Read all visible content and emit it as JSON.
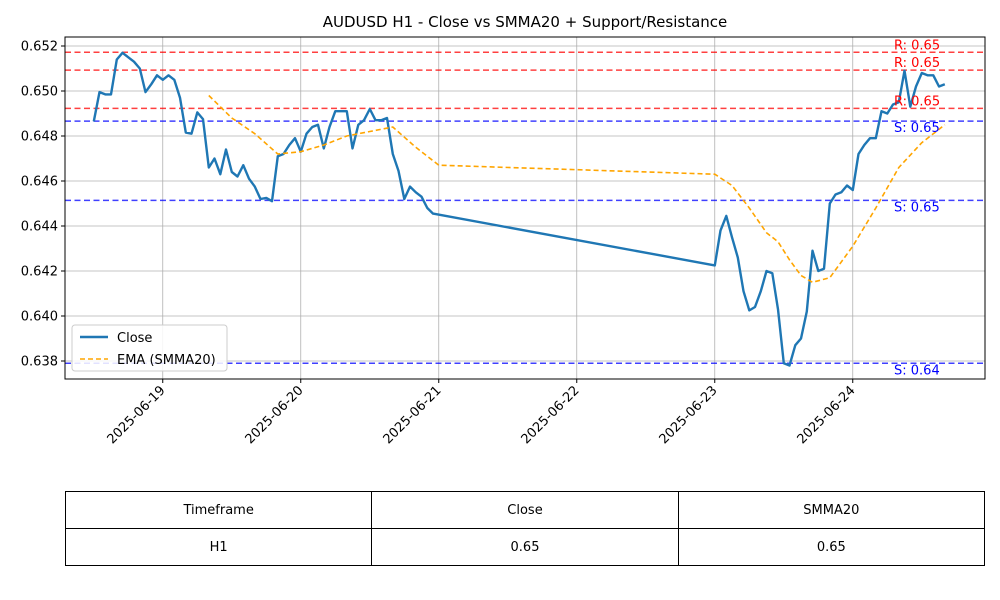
{
  "chart_data": {
    "type": "line",
    "title": "AUDUSD H1 - Close vs SMMA20 + Support/Resistance",
    "xlabel": "",
    "ylabel": "",
    "x_range": [
      "2025-06-18 07:00",
      "2025-06-24 23:00"
    ],
    "ylim": [
      0.6372,
      0.6524
    ],
    "x_ticks": [
      "2025-06-19",
      "2025-06-20",
      "2025-06-21",
      "2025-06-22",
      "2025-06-23",
      "2025-06-24"
    ],
    "y_ticks": [
      "0.638",
      "0.640",
      "0.642",
      "0.644",
      "0.646",
      "0.648",
      "0.650",
      "0.652"
    ],
    "grid": true,
    "legend_position": "lower-left",
    "series": [
      {
        "name": "Close",
        "color": "#1f77b4",
        "style": "solid",
        "points": [
          [
            "2025-06-18 12:00",
            0.64865
          ],
          [
            "2025-06-18 13:00",
            0.64995
          ],
          [
            "2025-06-18 14:00",
            0.64985
          ],
          [
            "2025-06-18 15:00",
            0.64985
          ],
          [
            "2025-06-18 16:00",
            0.6514
          ],
          [
            "2025-06-18 17:00",
            0.6517
          ],
          [
            "2025-06-18 18:00",
            0.6515
          ],
          [
            "2025-06-18 19:00",
            0.6513
          ],
          [
            "2025-06-18 20:00",
            0.651
          ],
          [
            "2025-06-18 21:00",
            0.64995
          ],
          [
            "2025-06-18 22:00",
            0.6503
          ],
          [
            "2025-06-18 23:00",
            0.6507
          ],
          [
            "2025-06-19 00:00",
            0.6505
          ],
          [
            "2025-06-19 01:00",
            0.6507
          ],
          [
            "2025-06-19 02:00",
            0.6505
          ],
          [
            "2025-06-19 03:00",
            0.6497
          ],
          [
            "2025-06-19 04:00",
            0.64815
          ],
          [
            "2025-06-19 05:00",
            0.6481
          ],
          [
            "2025-06-19 06:00",
            0.64905
          ],
          [
            "2025-06-19 07:00",
            0.64875
          ],
          [
            "2025-06-19 08:00",
            0.6466
          ],
          [
            "2025-06-19 09:00",
            0.647
          ],
          [
            "2025-06-19 10:00",
            0.6463
          ],
          [
            "2025-06-19 11:00",
            0.6474
          ],
          [
            "2025-06-19 12:00",
            0.6464
          ],
          [
            "2025-06-19 13:00",
            0.6462
          ],
          [
            "2025-06-19 14:00",
            0.6467
          ],
          [
            "2025-06-19 15:00",
            0.6461
          ],
          [
            "2025-06-19 16:00",
            0.64575
          ],
          [
            "2025-06-19 17:00",
            0.6452
          ],
          [
            "2025-06-19 18:00",
            0.64525
          ],
          [
            "2025-06-19 19:00",
            0.6451
          ],
          [
            "2025-06-19 20:00",
            0.6471
          ],
          [
            "2025-06-19 21:00",
            0.6472
          ],
          [
            "2025-06-19 22:00",
            0.6476
          ],
          [
            "2025-06-19 23:00",
            0.6479
          ],
          [
            "2025-06-20 00:00",
            0.6473
          ],
          [
            "2025-06-20 01:00",
            0.6481
          ],
          [
            "2025-06-20 02:00",
            0.6484
          ],
          [
            "2025-06-20 03:00",
            0.6485
          ],
          [
            "2025-06-20 04:00",
            0.64745
          ],
          [
            "2025-06-20 05:00",
            0.6484
          ],
          [
            "2025-06-20 06:00",
            0.6491
          ],
          [
            "2025-06-20 07:00",
            0.6491
          ],
          [
            "2025-06-20 08:00",
            0.6491
          ],
          [
            "2025-06-20 09:00",
            0.64745
          ],
          [
            "2025-06-20 10:00",
            0.6485
          ],
          [
            "2025-06-20 11:00",
            0.6487
          ],
          [
            "2025-06-20 12:00",
            0.6492
          ],
          [
            "2025-06-20 13:00",
            0.6487
          ],
          [
            "2025-06-20 14:00",
            0.6487
          ],
          [
            "2025-06-20 15:00",
            0.6488
          ],
          [
            "2025-06-20 16:00",
            0.6472
          ],
          [
            "2025-06-20 17:00",
            0.64645
          ],
          [
            "2025-06-20 18:00",
            0.6452
          ],
          [
            "2025-06-20 19:00",
            0.64575
          ],
          [
            "2025-06-20 20:00",
            0.6455
          ],
          [
            "2025-06-20 21:00",
            0.6453
          ],
          [
            "2025-06-20 22:00",
            0.6448
          ],
          [
            "2025-06-20 23:00",
            0.64455
          ],
          [
            "2025-06-23 00:00",
            0.64225
          ],
          [
            "2025-06-23 01:00",
            0.6438
          ],
          [
            "2025-06-23 02:00",
            0.64445
          ],
          [
            "2025-06-23 03:00",
            0.6435
          ],
          [
            "2025-06-23 04:00",
            0.6426
          ],
          [
            "2025-06-23 05:00",
            0.6411
          ],
          [
            "2025-06-23 06:00",
            0.64025
          ],
          [
            "2025-06-23 07:00",
            0.6404
          ],
          [
            "2025-06-23 08:00",
            0.6411
          ],
          [
            "2025-06-23 09:00",
            0.642
          ],
          [
            "2025-06-23 10:00",
            0.6419
          ],
          [
            "2025-06-23 11:00",
            0.6403
          ],
          [
            "2025-06-23 12:00",
            0.6379
          ],
          [
            "2025-06-23 13:00",
            0.6378
          ],
          [
            "2025-06-23 14:00",
            0.6387
          ],
          [
            "2025-06-23 15:00",
            0.639
          ],
          [
            "2025-06-23 16:00",
            0.6402
          ],
          [
            "2025-06-23 17:00",
            0.6429
          ],
          [
            "2025-06-23 18:00",
            0.642
          ],
          [
            "2025-06-23 19:00",
            0.6421
          ],
          [
            "2025-06-23 20:00",
            0.645
          ],
          [
            "2025-06-23 21:00",
            0.6454
          ],
          [
            "2025-06-23 22:00",
            0.6455
          ],
          [
            "2025-06-23 23:00",
            0.6458
          ],
          [
            "2025-06-24 00:00",
            0.6456
          ],
          [
            "2025-06-24 01:00",
            0.6472
          ],
          [
            "2025-06-24 02:00",
            0.6476
          ],
          [
            "2025-06-24 03:00",
            0.6479
          ],
          [
            "2025-06-24 04:00",
            0.6479
          ],
          [
            "2025-06-24 05:00",
            0.6491
          ],
          [
            "2025-06-24 06:00",
            0.649
          ],
          [
            "2025-06-24 07:00",
            0.6494
          ],
          [
            "2025-06-24 08:00",
            0.6495
          ],
          [
            "2025-06-24 09:00",
            0.6509
          ],
          [
            "2025-06-24 10:00",
            0.6493
          ],
          [
            "2025-06-24 11:00",
            0.6502
          ],
          [
            "2025-06-24 12:00",
            0.6508
          ],
          [
            "2025-06-24 13:00",
            0.6507
          ],
          [
            "2025-06-24 14:00",
            0.6507
          ],
          [
            "2025-06-24 15:00",
            0.6502
          ],
          [
            "2025-06-24 16:00",
            0.6503
          ]
        ]
      },
      {
        "name": "EMA (SMMA20)",
        "color": "#ffa500",
        "style": "dashed",
        "points": [
          [
            "2025-06-19 08:00",
            0.6498
          ],
          [
            "2025-06-19 12:00",
            0.6488
          ],
          [
            "2025-06-19 16:00",
            0.6481
          ],
          [
            "2025-06-19 20:00",
            0.6472
          ],
          [
            "2025-06-20 00:00",
            0.6473
          ],
          [
            "2025-06-20 04:00",
            0.6476
          ],
          [
            "2025-06-20 08:00",
            0.648
          ],
          [
            "2025-06-20 12:00",
            0.6482
          ],
          [
            "2025-06-20 16:00",
            0.6484
          ],
          [
            "2025-06-20 20:00",
            0.6475
          ],
          [
            "2025-06-21 00:00",
            0.6467
          ],
          [
            "2025-06-23 00:00",
            0.6463
          ],
          [
            "2025-06-23 03:00",
            0.6458
          ],
          [
            "2025-06-23 06:00",
            0.6448
          ],
          [
            "2025-06-23 09:00",
            0.6437
          ],
          [
            "2025-06-23 11:00",
            0.6433
          ],
          [
            "2025-06-23 13:00",
            0.6425
          ],
          [
            "2025-06-23 15:00",
            0.6418
          ],
          [
            "2025-06-23 17:00",
            0.6415
          ],
          [
            "2025-06-23 20:00",
            0.6417
          ],
          [
            "2025-06-24 00:00",
            0.6431
          ],
          [
            "2025-06-24 04:00",
            0.6448
          ],
          [
            "2025-06-24 08:00",
            0.6466
          ],
          [
            "2025-06-24 12:00",
            0.6477
          ],
          [
            "2025-06-24 16:00",
            0.6485
          ]
        ]
      }
    ],
    "resistance_levels": [
      {
        "value": 0.65172,
        "label": "R: 0.65"
      },
      {
        "value": 0.65093,
        "label": "R: 0.65"
      },
      {
        "value": 0.64923,
        "label": "R: 0.65"
      }
    ],
    "support_levels": [
      {
        "value": 0.64866,
        "label": "S: 0.65"
      },
      {
        "value": 0.64514,
        "label": "S: 0.65"
      },
      {
        "value": 0.6379,
        "label": "S: 0.64"
      }
    ],
    "resistance_color": "#ff0000",
    "support_color": "#0000ff"
  },
  "table": {
    "headers": [
      "Timeframe",
      "Close",
      "SMMA20"
    ],
    "row": [
      "H1",
      "0.65",
      "0.65"
    ]
  }
}
